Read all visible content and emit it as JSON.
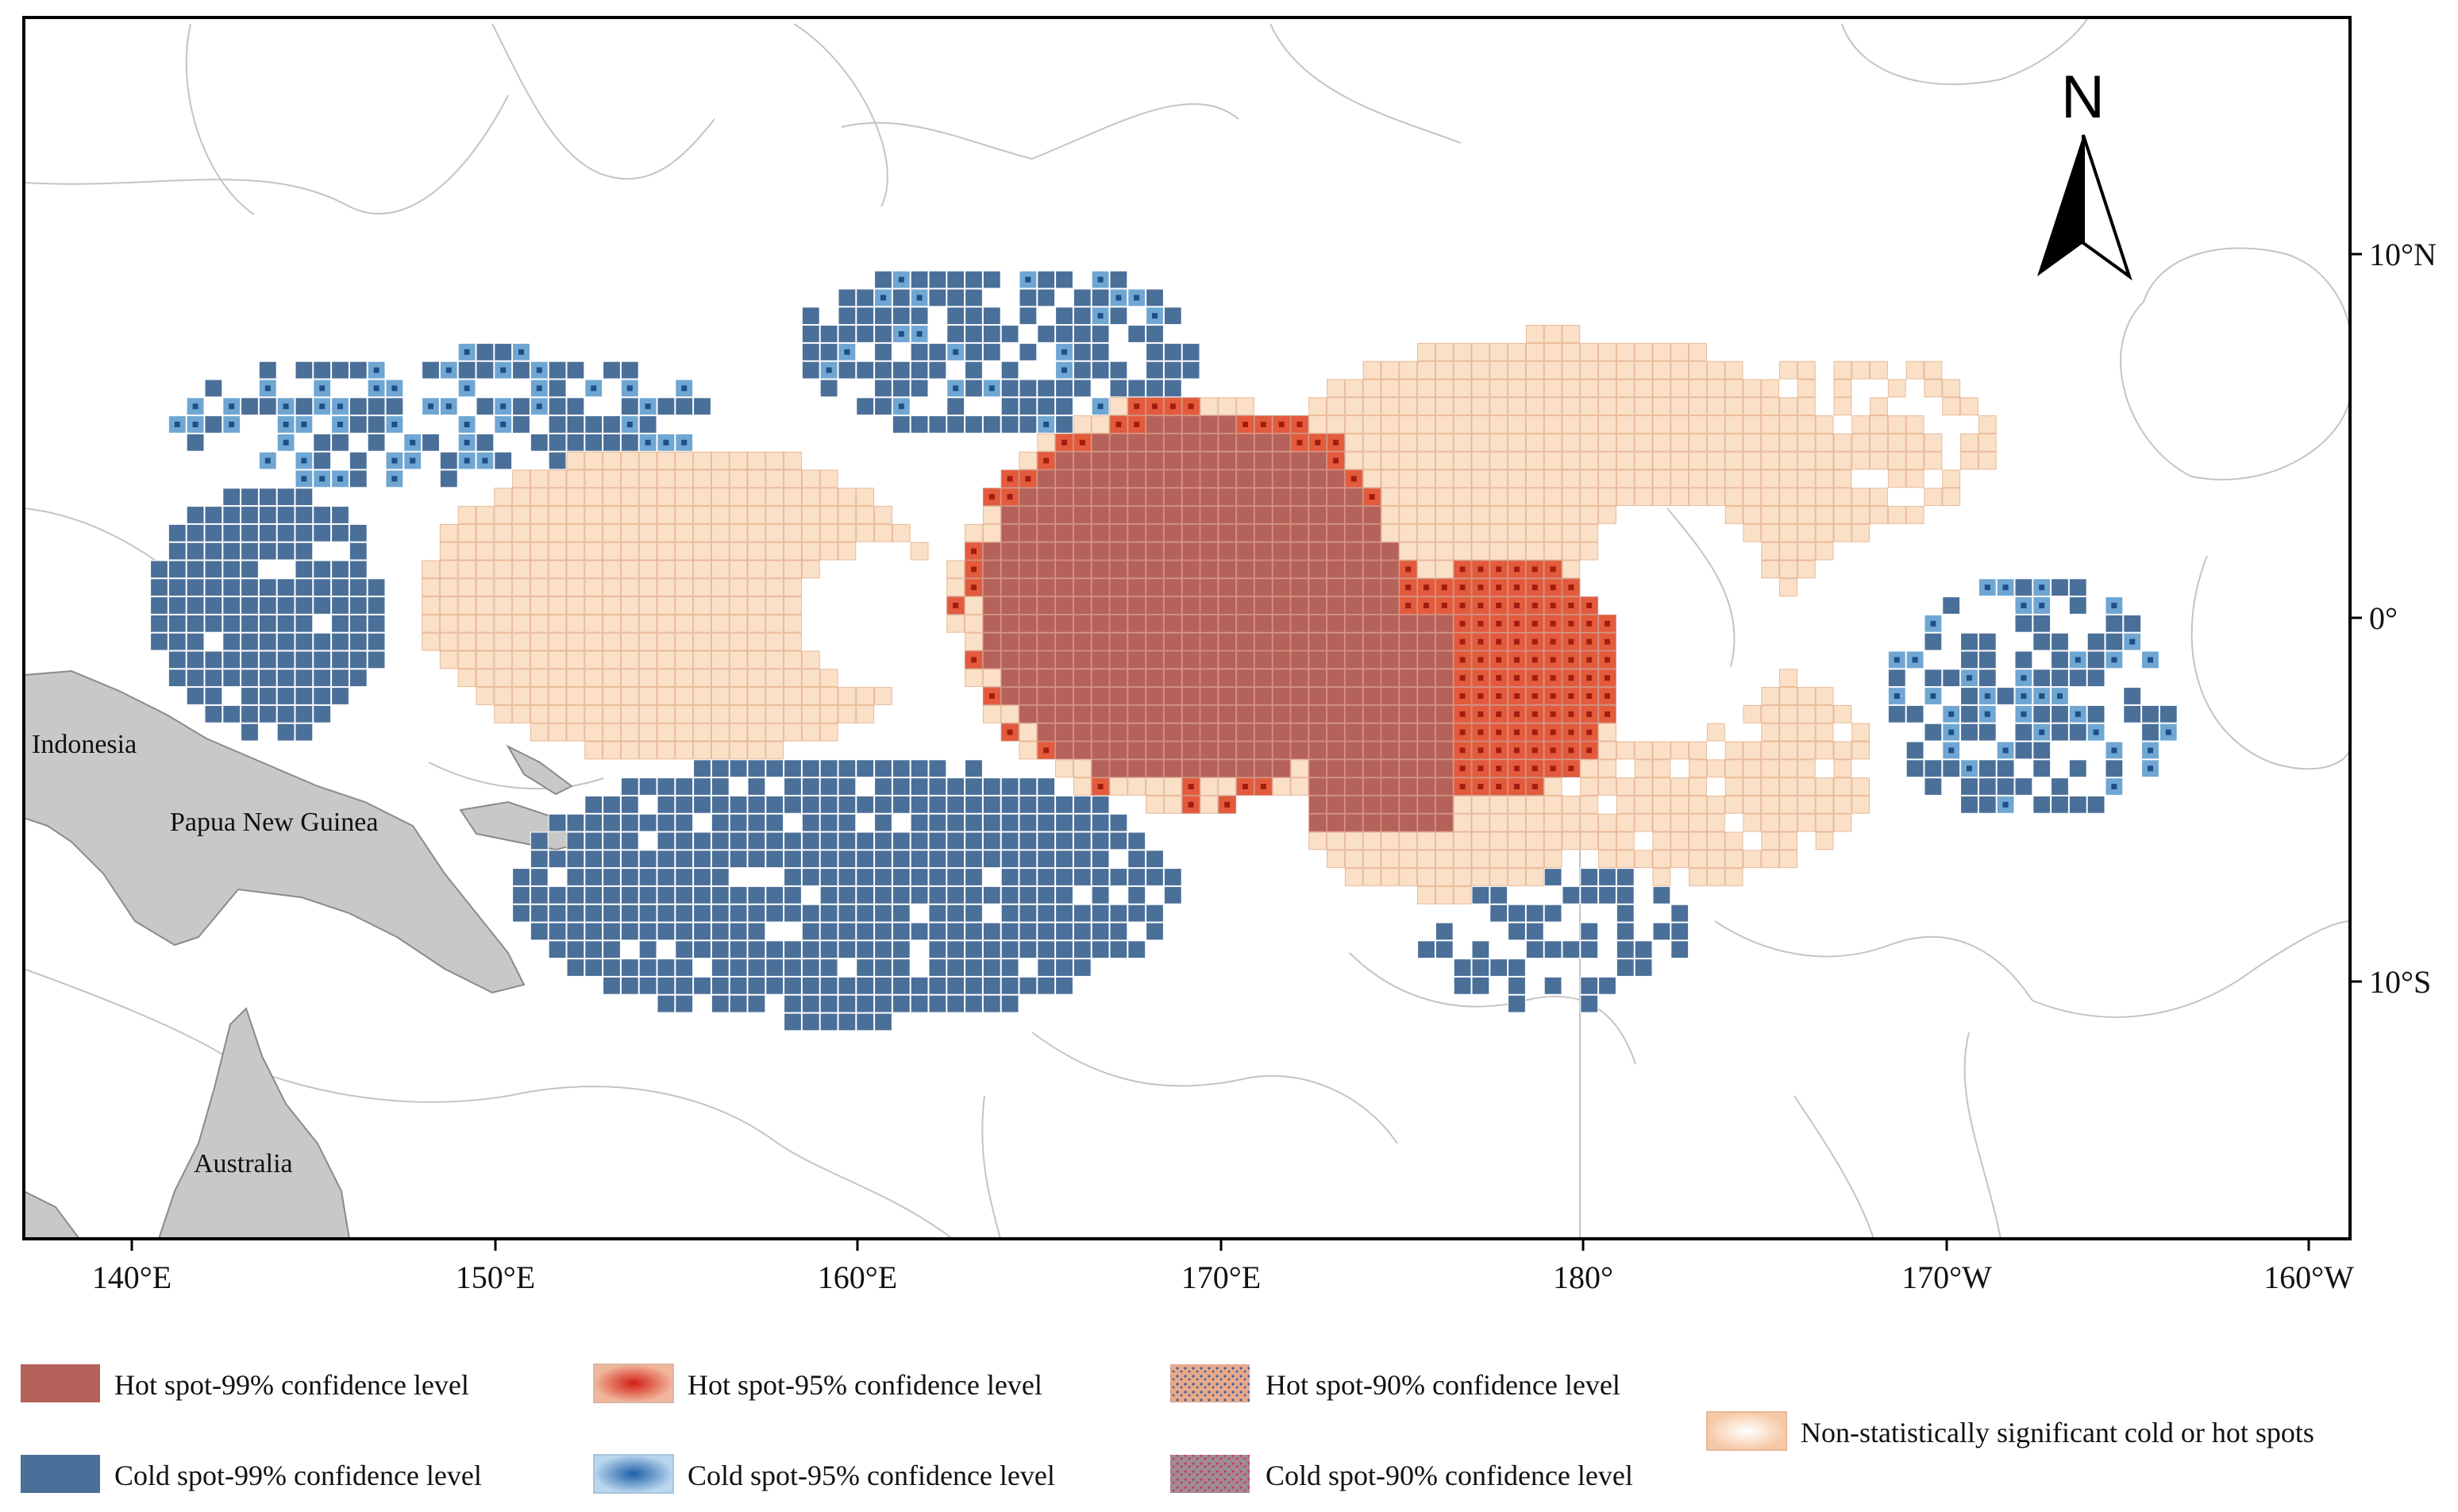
{
  "colors": {
    "hot99": "#b5625a",
    "hot95": "#e45a3c",
    "hot90": "#e9a98c",
    "cold99": "#4a6f98",
    "cold95": "#6fa6d2",
    "cold90": "#9e7f8e",
    "nonsig": "#fbe0c8",
    "land": "#c8c8c8",
    "eez_line": "#c0c0c0",
    "frame": "#000000"
  },
  "map": {
    "north_arrow_label": "N",
    "land_labels": [
      "Indonesia",
      "Papua New Guinea",
      "Australia"
    ],
    "lon_ticks": [
      "140°E",
      "150°E",
      "160°E",
      "170°E",
      "180°",
      "170°W",
      "160°W"
    ],
    "lat_ticks": [
      "10°N",
      "0°",
      "10°S"
    ]
  },
  "legend": {
    "items": [
      {
        "key": "hot99",
        "label": "Hot spot-99% confidence level"
      },
      {
        "key": "hot95",
        "label": "Hot spot-95% confidence level"
      },
      {
        "key": "hot90",
        "label": "Hot spot-90% confidence level"
      },
      {
        "key": "nonsig",
        "label": "Non-statistically significant cold or hot spots"
      },
      {
        "key": "cold99",
        "label": "Cold spot-99% confidence level"
      },
      {
        "key": "cold95",
        "label": "Cold spot-95% confidence level"
      },
      {
        "key": "cold90",
        "label": "Cold spot-90% confidence level"
      }
    ]
  }
}
